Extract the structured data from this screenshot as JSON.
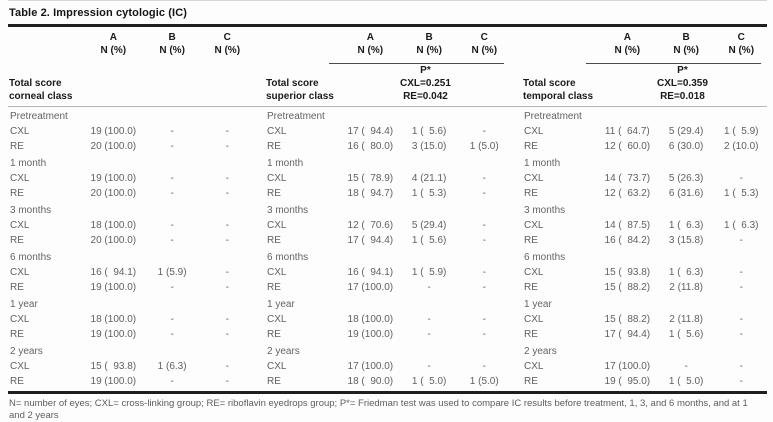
{
  "title": "Table 2. Impression cytologic (IC)",
  "columns": {
    "names": [
      "A",
      "B",
      "C"
    ],
    "subheader": "N (%)"
  },
  "panels": [
    {
      "label_line1": "Total score",
      "label_line2": "corneal class",
      "p_star": null,
      "periods": [
        {
          "period": "Pretreatment",
          "rows": [
            [
              "CXL",
              "19 (100.0)",
              "-",
              "-"
            ],
            [
              "RE",
              "20 (100.0)",
              "-",
              "-"
            ]
          ]
        },
        {
          "period": "1 month",
          "rows": [
            [
              "CXL",
              "19 (100.0)",
              "-",
              "-"
            ],
            [
              "RE",
              "20 (100.0)",
              "-",
              "-"
            ]
          ]
        },
        {
          "period": "3 months",
          "rows": [
            [
              "CXL",
              "18 (100.0)",
              "-",
              "-"
            ],
            [
              "RE",
              "20 (100.0)",
              "-",
              "-"
            ]
          ]
        },
        {
          "period": "6 months",
          "rows": [
            [
              "CXL",
              "16 (  94.1)",
              "1 (5.9)",
              "-"
            ],
            [
              "RE",
              "19 (100.0)",
              "-",
              "-"
            ]
          ]
        },
        {
          "period": "1 year",
          "rows": [
            [
              "CXL",
              "18 (100.0)",
              "-",
              "-"
            ],
            [
              "RE",
              "19 (100.0)",
              "-",
              "-"
            ]
          ]
        },
        {
          "period": "2 years",
          "rows": [
            [
              "CXL",
              "15 (  93.8)",
              "1 (6.3)",
              "-"
            ],
            [
              "RE",
              "19 (100.0)",
              "-",
              "-"
            ]
          ]
        }
      ]
    },
    {
      "label_line1": "Total score",
      "label_line2": "superior class",
      "p_star": {
        "label": "P*",
        "cxl": "CXL=0.251",
        "re": "RE=0.042"
      },
      "periods": [
        {
          "period": "Pretreatment",
          "rows": [
            [
              "CXL",
              "17 (  94.4)",
              "1 (  5.6)",
              "-"
            ],
            [
              "RE",
              "16 (  80.0)",
              "3 (15.0)",
              "1 (5.0)"
            ]
          ]
        },
        {
          "period": "1 month",
          "rows": [
            [
              "CXL",
              "15 (  78.9)",
              "4 (21.1)",
              "-"
            ],
            [
              "RE",
              "18 (  94.7)",
              "1 (  5.3)",
              "-"
            ]
          ]
        },
        {
          "period": "3 months",
          "rows": [
            [
              "CXL",
              "12 (  70.6)",
              "5 (29.4)",
              "-"
            ],
            [
              "RE",
              "17 (  94.4)",
              "1 (  5.6)",
              "-"
            ]
          ]
        },
        {
          "period": "6 months",
          "rows": [
            [
              "CXL",
              "16 (  94.1)",
              "1 (  5.9)",
              "-"
            ],
            [
              "RE",
              "17 (100.0)",
              "-",
              "-"
            ]
          ]
        },
        {
          "period": "1 year",
          "rows": [
            [
              "CXL",
              "18 (100.0)",
              "-",
              "-"
            ],
            [
              "RE",
              "19 (100.0)",
              "-",
              "-"
            ]
          ]
        },
        {
          "period": "2 years",
          "rows": [
            [
              "CXL",
              "17 (100.0)",
              "-",
              "-"
            ],
            [
              "RE",
              "18 (  90.0)",
              "1 (  5.0)",
              "1 (5.0)"
            ]
          ]
        }
      ]
    },
    {
      "label_line1": "Total score",
      "label_line2": "temporal class",
      "p_star": {
        "label": "P*",
        "cxl": "CXL=0.359",
        "re": "RE=0.018"
      },
      "periods": [
        {
          "period": "Pretreatment",
          "rows": [
            [
              "CXL",
              "11 (  64.7)",
              "5 (29.4)",
              "1 (  5.9)"
            ],
            [
              "RE",
              "12 (  60.0)",
              "6 (30.0)",
              "2 (10.0)"
            ]
          ]
        },
        {
          "period": "1 month",
          "rows": [
            [
              "CXL",
              "14 (  73.7)",
              "5 (26.3)",
              "-"
            ],
            [
              "RE",
              "12 (  63.2)",
              "6 (31.6)",
              "1 (  5.3)"
            ]
          ]
        },
        {
          "period": "3 months",
          "rows": [
            [
              "CXL",
              "14 (  87.5)",
              "1 (  6.3)",
              "1 (  6.3)"
            ],
            [
              "RE",
              "16 (  84.2)",
              "3 (15.8)",
              "-"
            ]
          ]
        },
        {
          "period": "6 months",
          "rows": [
            [
              "CXL",
              "15 (  93.8)",
              "1 (  6.3)",
              "-"
            ],
            [
              "RE",
              "15 (  88.2)",
              "2 (11.8)",
              "-"
            ]
          ]
        },
        {
          "period": "1 year",
          "rows": [
            [
              "CXL",
              "15 (  88.2)",
              "2 (11.8)",
              "-"
            ],
            [
              "RE",
              "17 (  94.4)",
              "1 (  5.6)",
              "-"
            ]
          ]
        },
        {
          "period": "2 years",
          "rows": [
            [
              "CXL",
              "17 (100.0)",
              "-",
              "-"
            ],
            [
              "RE",
              "19 (  95.0)",
              "1 (  5.0)",
              "-"
            ]
          ]
        }
      ]
    }
  ],
  "footnote": "N= number of eyes; CXL= cross-linking group; RE= riboflavin eyedrops group; P*= Friedman test was used to compare IC results before treatment, 1, 3, and 6 months, and at 1 and 2 years",
  "colors": {
    "text_dark": "#1a1a1a",
    "text_gray": "#616161",
    "rule_dark": "#1f1f1f",
    "rule_light": "#b5b5b5"
  }
}
